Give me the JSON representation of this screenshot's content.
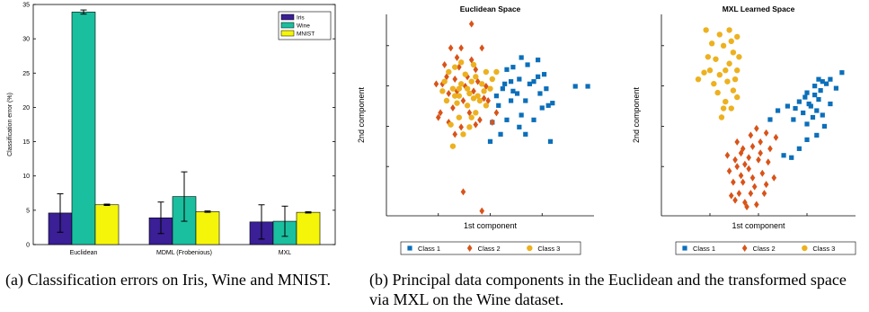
{
  "chart_data": [
    {
      "type": "bar",
      "ylabel": "Classification error (%)",
      "ylim": [
        0,
        35
      ],
      "yticks": [
        0,
        5,
        10,
        15,
        20,
        25,
        30,
        35
      ],
      "grid": false,
      "legend_placement": "top-right",
      "categories": [
        "Euclidean",
        "MDML (Frobenious)",
        "MXL"
      ],
      "series": [
        {
          "name": "Iris",
          "color": "#3a1f96",
          "values": [
            4.6,
            3.9,
            3.3
          ],
          "errors": [
            2.8,
            2.3,
            2.5
          ]
        },
        {
          "name": "Wine",
          "color": "#1abf9f",
          "values": [
            33.9,
            7.0,
            3.4
          ],
          "errors": [
            0.3,
            3.6,
            2.2
          ]
        },
        {
          "name": "MNIST",
          "color": "#f5f50a",
          "values": [
            5.8,
            4.8,
            4.7
          ],
          "errors": [
            0.1,
            0.1,
            0.1
          ]
        }
      ]
    },
    {
      "type": "scatter",
      "title": "Euclidean Space",
      "xlabel": "1st component",
      "ylabel": "2nd component",
      "xlim": [
        -4.5,
        5.5
      ],
      "ylim": [
        -4.3,
        4.1
      ],
      "legend_placement": "bottom",
      "series": [
        {
          "name": "Class 1",
          "marker": "square",
          "color": "#0b6fba",
          "points": [
            [
              1.3,
              1.8
            ],
            [
              1.6,
              1.9
            ],
            [
              2.0,
              2.3
            ],
            [
              2.3,
              2.0
            ],
            [
              2.8,
              2.2
            ],
            [
              3.1,
              1.6
            ],
            [
              4.6,
              1.1
            ],
            [
              5.2,
              1.1
            ],
            [
              2.6,
              1.3
            ],
            [
              1.8,
              0.8
            ],
            [
              1.2,
              1.2
            ],
            [
              0.9,
              0.3
            ],
            [
              1.5,
              0.5
            ],
            [
              2.2,
              0.5
            ],
            [
              0.6,
              -0.4
            ],
            [
              1.0,
              -0.9
            ],
            [
              1.9,
              -0.6
            ],
            [
              2.6,
              -0.3
            ],
            [
              3.0,
              0.2
            ],
            [
              3.5,
              0.4
            ],
            [
              3.4,
              -1.2
            ],
            [
              2.0,
              -0.1
            ],
            [
              1.3,
              -0.3
            ],
            [
              0.5,
              -1.2
            ],
            [
              1.1,
              1.0
            ],
            [
              1.9,
              1.4
            ],
            [
              2.9,
              0.8
            ],
            [
              3.2,
              1.0
            ],
            [
              2.4,
              1.2
            ],
            [
              1.6,
              0.9
            ],
            [
              0.8,
              0.7
            ],
            [
              2.8,
              1.5
            ],
            [
              1.5,
              1.3
            ],
            [
              2.2,
              -0.9
            ],
            [
              3.3,
              0.3
            ]
          ]
        },
        {
          "name": "Class 2",
          "marker": "diamond",
          "color": "#d95319",
          "points": [
            [
              0.1,
              2.7
            ],
            [
              -0.4,
              2.2
            ],
            [
              -0.6,
              1.5
            ],
            [
              -1.2,
              1.4
            ],
            [
              -1.8,
              1.2
            ],
            [
              -1.5,
              0.8
            ],
            [
              -1.0,
              1.9
            ],
            [
              -0.2,
              1.8
            ],
            [
              0.3,
              1.1
            ],
            [
              -0.8,
              0.5
            ],
            [
              -1.3,
              0.2
            ],
            [
              -1.9,
              0.0
            ],
            [
              -0.5,
              0.0
            ],
            [
              0.0,
              -0.3
            ],
            [
              -0.9,
              -0.6
            ],
            [
              -1.5,
              -0.4
            ],
            [
              -1.1,
              2.3
            ],
            [
              -1.7,
              2.0
            ],
            [
              -2.1,
              1.2
            ],
            [
              -0.3,
              0.9
            ],
            [
              0.4,
              0.5
            ],
            [
              0.6,
              -0.4
            ],
            [
              -0.7,
              1.1
            ],
            [
              -1.2,
              -0.9
            ],
            [
              -2.0,
              -0.2
            ],
            [
              -0.1,
              1.3
            ],
            [
              0.2,
              0.6
            ],
            [
              -0.4,
              3.7
            ],
            [
              -1.1,
              0.9
            ],
            [
              -1.6,
              1.5
            ],
            [
              -0.2,
              -0.5
            ],
            [
              -0.9,
              2.7
            ],
            [
              -1.4,
              2.7
            ],
            [
              0.1,
              -4.1
            ],
            [
              -0.8,
              -3.3
            ],
            [
              0.8,
              0.0
            ]
          ]
        },
        {
          "name": "Class 3",
          "marker": "circle",
          "color": "#edb120",
          "points": [
            [
              -1.5,
              1.7
            ],
            [
              -1.3,
              1.0
            ],
            [
              -1.0,
              0.7
            ],
            [
              -0.5,
              0.8
            ],
            [
              -0.2,
              1.5
            ],
            [
              0.3,
              1.7
            ],
            [
              0.8,
              1.7
            ],
            [
              0.5,
              1.0
            ],
            [
              -0.4,
              1.3
            ],
            [
              -0.9,
              1.2
            ],
            [
              -1.2,
              1.9
            ],
            [
              -1.7,
              1.3
            ],
            [
              -0.6,
              0.3
            ],
            [
              -0.2,
              0.0
            ],
            [
              -1.0,
              -0.2
            ],
            [
              -1.4,
              -0.5
            ],
            [
              -0.8,
              -0.9
            ],
            [
              -0.1,
              0.7
            ],
            [
              0.3,
              0.3
            ],
            [
              -1.6,
              0.5
            ],
            [
              -0.7,
              1.6
            ],
            [
              -1.1,
              0.4
            ],
            [
              0.1,
              1.2
            ],
            [
              -0.3,
              2.0
            ],
            [
              -1.3,
              -1.4
            ],
            [
              -0.5,
              -0.6
            ],
            [
              0.6,
              1.4
            ],
            [
              -1.8,
              0.9
            ],
            [
              -0.9,
              2.1
            ],
            [
              0.0,
              0.5
            ],
            [
              -0.4,
              -0.2
            ],
            [
              -1.0,
              1.0
            ],
            [
              -0.6,
              1.0
            ],
            [
              0.2,
              0.9
            ],
            [
              -1.2,
              0.7
            ],
            [
              -0.3,
              0.6
            ]
          ]
        }
      ]
    },
    {
      "type": "scatter",
      "title": "MXL Learned Space",
      "xlabel": "1st component",
      "ylabel": "2nd component",
      "xlim": [
        -4.5,
        5.5
      ],
      "ylim": [
        -4.5,
        4.5
      ],
      "legend_placement": "bottom",
      "series": [
        {
          "name": "Class 1",
          "marker": "square",
          "color": "#0b6fba",
          "points": [
            [
              1.5,
              0.2
            ],
            [
              2.0,
              0.4
            ],
            [
              2.6,
              0.6
            ],
            [
              3.0,
              1.0
            ],
            [
              3.4,
              1.3
            ],
            [
              3.8,
              1.5
            ],
            [
              4.2,
              1.6
            ],
            [
              4.8,
              1.9
            ],
            [
              3.2,
              0.4
            ],
            [
              3.6,
              0.7
            ],
            [
              2.8,
              0.1
            ],
            [
              2.3,
              -0.2
            ],
            [
              3.0,
              -0.4
            ],
            [
              3.5,
              -0.9
            ],
            [
              3.9,
              -0.5
            ],
            [
              3.0,
              -1.1
            ],
            [
              2.6,
              -1.5
            ],
            [
              2.2,
              -1.9
            ],
            [
              1.8,
              -1.8
            ],
            [
              4.2,
              0.5
            ],
            [
              3.5,
              0.2
            ],
            [
              2.9,
              0.8
            ],
            [
              3.7,
              1.1
            ],
            [
              3.3,
              -0.1
            ],
            [
              1.1,
              -0.2
            ],
            [
              4.0,
              1.4
            ],
            [
              3.1,
              0.5
            ],
            [
              2.4,
              0.3
            ],
            [
              3.8,
              0.0
            ],
            [
              3.4,
              0.9
            ],
            [
              4.5,
              1.2
            ],
            [
              3.6,
              1.6
            ]
          ]
        },
        {
          "name": "Class 2",
          "marker": "diamond",
          "color": "#d95319",
          "points": [
            [
              -0.7,
              -2.0
            ],
            [
              -0.3,
              -1.5
            ],
            [
              0.2,
              -1.4
            ],
            [
              0.6,
              -1.2
            ],
            [
              0.9,
              -0.8
            ],
            [
              0.5,
              -2.0
            ],
            [
              0.0,
              -2.4
            ],
            [
              -0.4,
              -2.7
            ],
            [
              -0.8,
              -3.0
            ],
            [
              -0.5,
              -3.5
            ],
            [
              -0.2,
              -3.9
            ],
            [
              0.3,
              -3.2
            ],
            [
              0.7,
              -2.6
            ],
            [
              1.0,
              -2.1
            ],
            [
              -1.0,
              -2.5
            ],
            [
              -0.6,
              -1.2
            ],
            [
              0.1,
              -0.9
            ],
            [
              0.4,
              -0.6
            ],
            [
              -0.3,
              -3.0
            ],
            [
              0.8,
              -3.5
            ],
            [
              1.3,
              -2.8
            ],
            [
              -0.9,
              -3.6
            ],
            [
              -0.1,
              -4.1
            ],
            [
              0.2,
              -2.8
            ],
            [
              -0.6,
              -2.3
            ],
            [
              0.6,
              -1.7
            ],
            [
              1.1,
              -1.5
            ],
            [
              -1.1,
              -1.8
            ],
            [
              0.0,
              -1.9
            ],
            [
              -0.4,
              -1.7
            ],
            [
              0.9,
              -3.1
            ],
            [
              -0.7,
              -3.8
            ],
            [
              1.4,
              -1.0
            ],
            [
              -0.2,
              -2.2
            ],
            [
              0.4,
              -4.0
            ],
            [
              0.1,
              -3.5
            ]
          ]
        },
        {
          "name": "Class 3",
          "marker": "circle",
          "color": "#edb120",
          "points": [
            [
              -2.2,
              3.8
            ],
            [
              -1.5,
              3.6
            ],
            [
              -1.0,
              3.8
            ],
            [
              -0.6,
              3.5
            ],
            [
              -1.3,
              3.1
            ],
            [
              -0.8,
              2.8
            ],
            [
              -1.7,
              2.5
            ],
            [
              -0.5,
              2.6
            ],
            [
              -2.0,
              2.0
            ],
            [
              -1.2,
              2.0
            ],
            [
              -0.6,
              2.0
            ],
            [
              -2.6,
              1.6
            ],
            [
              -1.8,
              1.4
            ],
            [
              -1.1,
              1.5
            ],
            [
              -1.6,
              1.0
            ],
            [
              -1.2,
              0.6
            ],
            [
              -0.9,
              0.3
            ],
            [
              -1.4,
              -0.1
            ],
            [
              -0.8,
              1.1
            ],
            [
              -2.1,
              2.6
            ],
            [
              -1.5,
              1.8
            ],
            [
              -0.7,
              1.6
            ],
            [
              -1.9,
              3.2
            ],
            [
              -0.9,
              3.3
            ],
            [
              -1.3,
              0.3
            ],
            [
              -0.6,
              0.8
            ],
            [
              -2.3,
              1.9
            ],
            [
              -1.0,
              2.3
            ]
          ]
        }
      ]
    }
  ],
  "captions": {
    "a": "(a)  Classification errors on Iris, Wine and MNIST.",
    "b": "(b)  Principal data components in the Euclidean and the transformed space via MXL on the Wine dataset."
  }
}
